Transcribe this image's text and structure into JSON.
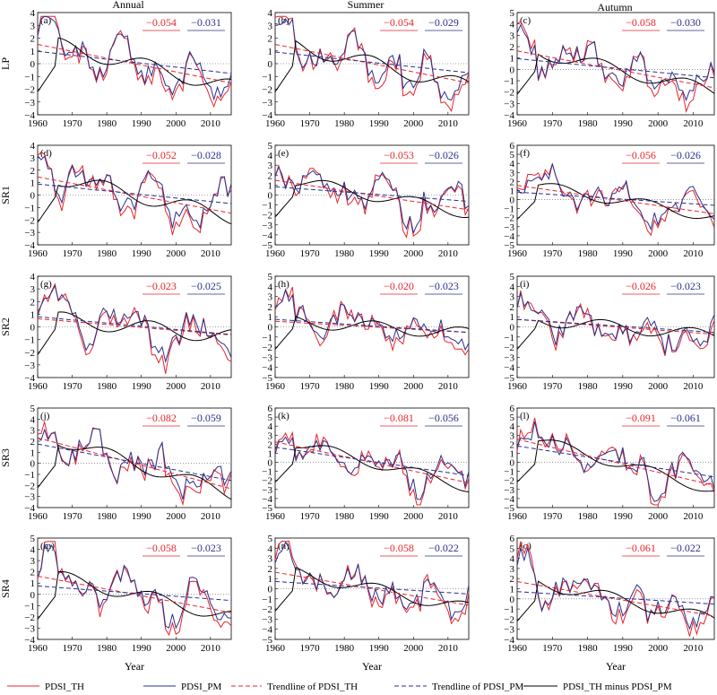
{
  "colors": {
    "th": "#e8242b",
    "pm": "#2b2f8c",
    "diff": "#000000"
  },
  "column_titles": [
    "Annual",
    "Summer",
    "Autumn"
  ],
  "row_labels": [
    "LP",
    "SR1",
    "SR2",
    "SR3",
    "SR4"
  ],
  "xlabel": "Year",
  "x_ticks": [
    1960,
    1970,
    1980,
    1990,
    2000,
    2010
  ],
  "legend": [
    "PDSI_TH",
    "PDSI_PM",
    "Trendline of PDSI_TH",
    "Trendline of PDSI_PM",
    "PDSI_TH minus PDSI_PM"
  ],
  "chart_data": {
    "type": "line",
    "years": [
      1960,
      2016
    ],
    "series_names": [
      "PDSI_TH",
      "PDSI_PM",
      "Trendline of PDSI_TH",
      "Trendline of PDSI_PM",
      "PDSI_TH minus PDSI_PM"
    ],
    "panels": [
      {
        "label": "(a)",
        "region": "LP",
        "season": "Annual",
        "ylim": [
          -4,
          4
        ],
        "yticks": [
          -4,
          -3,
          -2,
          -1,
          0,
          1,
          2,
          3,
          4
        ],
        "slope_th": "−0.054",
        "slope_pm": "−0.031"
      },
      {
        "label": "(b)",
        "region": "LP",
        "season": "Summer",
        "ylim": [
          -4,
          4
        ],
        "yticks": [
          -4,
          -3,
          -2,
          -1,
          0,
          1,
          2,
          3,
          4
        ],
        "slope_th": "−0.054",
        "slope_pm": "−0.029"
      },
      {
        "label": "(c)",
        "region": "LP",
        "season": "Autumn",
        "ylim": [
          -4,
          5
        ],
        "yticks": [
          -4,
          -3,
          -2,
          -1,
          0,
          1,
          2,
          3,
          4,
          5
        ],
        "slope_th": "−0.058",
        "slope_pm": "−0.030"
      },
      {
        "label": "(d)",
        "region": "SR1",
        "season": "Annual",
        "ylim": [
          -4,
          4
        ],
        "yticks": [
          -4,
          -3,
          -2,
          -1,
          0,
          1,
          2,
          3,
          4
        ],
        "slope_th": "−0.052",
        "slope_pm": "−0.028"
      },
      {
        "label": "(e)",
        "region": "SR1",
        "season": "Summer",
        "ylim": [
          -5,
          5
        ],
        "yticks": [
          -5,
          -4,
          -3,
          -2,
          -1,
          0,
          1,
          2,
          3,
          4,
          5
        ],
        "slope_th": "−0.053",
        "slope_pm": "−0.026"
      },
      {
        "label": "(f)",
        "region": "SR1",
        "season": "Autumn",
        "ylim": [
          -5,
          6
        ],
        "yticks": [
          -5,
          -4,
          -3,
          -2,
          -1,
          0,
          1,
          2,
          3,
          4,
          5,
          6
        ],
        "slope_th": "−0.056",
        "slope_pm": "−0.026"
      },
      {
        "label": "(g)",
        "region": "SR2",
        "season": "Annual",
        "ylim": [
          -4,
          4
        ],
        "yticks": [
          -4,
          -3,
          -2,
          -1,
          0,
          1,
          2,
          3,
          4
        ],
        "slope_th": "−0.023",
        "slope_pm": "−0.025"
      },
      {
        "label": "(h)",
        "region": "SR2",
        "season": "Summer",
        "ylim": [
          -5,
          5
        ],
        "yticks": [
          -5,
          -4,
          -3,
          -2,
          -1,
          0,
          1,
          2,
          3,
          4,
          5
        ],
        "slope_th": "−0.020",
        "slope_pm": "−0.023"
      },
      {
        "label": "(i)",
        "region": "SR2",
        "season": "Autumn",
        "ylim": [
          -5,
          5
        ],
        "yticks": [
          -5,
          -4,
          -3,
          -2,
          -1,
          0,
          1,
          2,
          3,
          4,
          5
        ],
        "slope_th": "−0.026",
        "slope_pm": "−0.023"
      },
      {
        "label": "(j)",
        "region": "SR3",
        "season": "Annual",
        "ylim": [
          -4,
          5
        ],
        "yticks": [
          -4,
          -3,
          -2,
          -1,
          0,
          1,
          2,
          3,
          4,
          5
        ],
        "slope_th": "−0.082",
        "slope_pm": "−0.059"
      },
      {
        "label": "(k)",
        "region": "SR3",
        "season": "Summer",
        "ylim": [
          -5,
          6
        ],
        "yticks": [
          -5,
          -4,
          -3,
          -2,
          -1,
          0,
          1,
          2,
          3,
          4,
          5,
          6
        ],
        "slope_th": "−0.081",
        "slope_pm": "−0.056"
      },
      {
        "label": "(l)",
        "region": "SR3",
        "season": "Autumn",
        "ylim": [
          -5,
          6
        ],
        "yticks": [
          -5,
          -4,
          -3,
          -2,
          -1,
          0,
          1,
          2,
          3,
          4,
          5,
          6
        ],
        "slope_th": "−0.091",
        "slope_pm": "−0.061"
      },
      {
        "label": "(m)",
        "region": "SR4",
        "season": "Annual",
        "ylim": [
          -4,
          5
        ],
        "yticks": [
          -4,
          -3,
          -2,
          -1,
          0,
          1,
          2,
          3,
          4,
          5
        ],
        "slope_th": "−0.058",
        "slope_pm": "−0.023"
      },
      {
        "label": "(n)",
        "region": "SR4",
        "season": "Summer",
        "ylim": [
          -5,
          5
        ],
        "yticks": [
          -5,
          -4,
          -3,
          -2,
          -1,
          0,
          1,
          2,
          3,
          4,
          5
        ],
        "slope_th": "−0.058",
        "slope_pm": "−0.022"
      },
      {
        "label": "(o)",
        "region": "SR4",
        "season": "Autumn",
        "ylim": [
          -4,
          6
        ],
        "yticks": [
          -4,
          -3,
          -2,
          -1,
          0,
          1,
          2,
          3,
          4,
          5,
          6
        ],
        "slope_th": "−0.061",
        "slope_pm": "−0.022"
      }
    ]
  }
}
